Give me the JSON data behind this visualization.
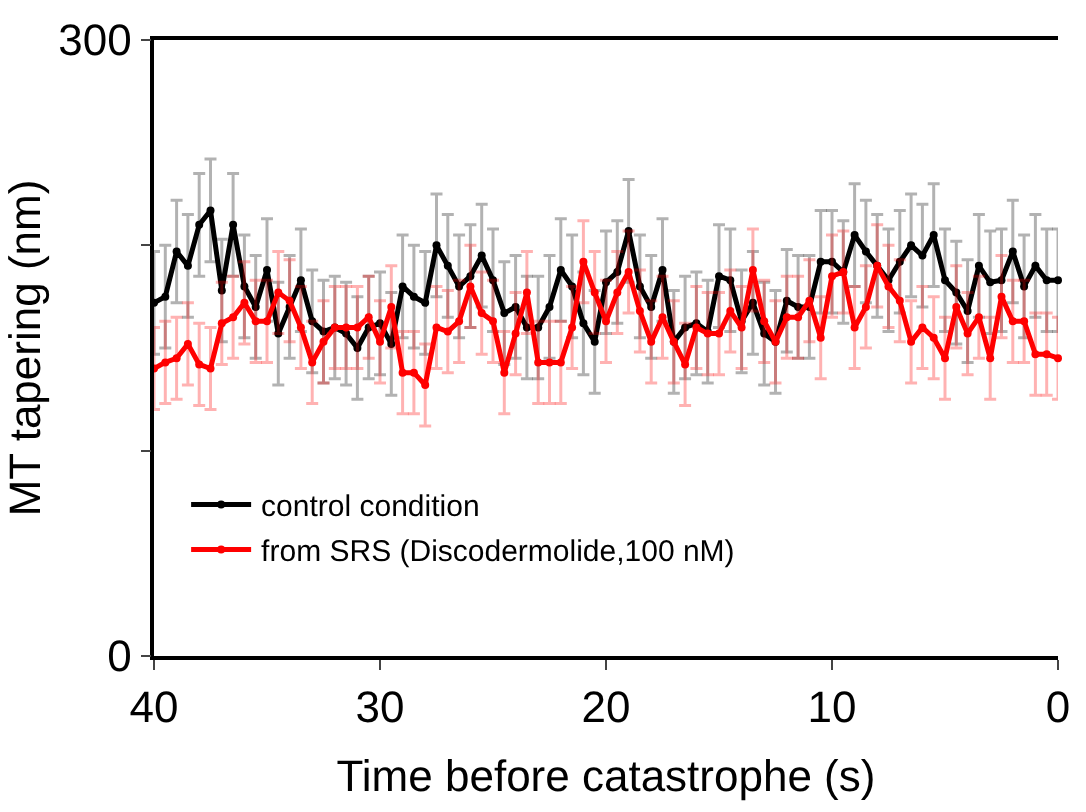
{
  "chart_data": {
    "type": "line",
    "xlabel": "Time before catastrophe (s)",
    "ylabel": "MT tapering (nm)",
    "x": [
      40,
      39.5,
      39,
      38.5,
      38,
      37.5,
      37,
      36.5,
      36,
      35.5,
      35,
      34.5,
      34,
      33.5,
      33,
      32.5,
      32,
      31.5,
      31,
      30.5,
      30,
      29.5,
      29,
      28.5,
      28,
      27.5,
      27,
      26.5,
      26,
      25.5,
      25,
      24.5,
      24,
      23.5,
      23,
      22.5,
      22,
      21.5,
      21,
      20.5,
      20,
      19.5,
      19,
      18.5,
      18,
      17.5,
      17,
      16.5,
      16,
      15.5,
      15,
      14.5,
      14,
      13.5,
      13,
      12.5,
      12,
      11.5,
      11,
      10.5,
      10,
      9.5,
      9,
      8.5,
      8,
      7.5,
      7,
      6.5,
      6,
      5.5,
      5,
      4.5,
      4,
      3.5,
      3,
      2.5,
      2,
      1.5,
      1,
      0.5,
      0
    ],
    "series": [
      {
        "name": "control condition",
        "color": "#000000",
        "values": [
          172,
          175,
          197,
          190,
          210,
          217,
          178,
          210,
          180,
          170,
          188,
          157,
          170,
          183,
          163,
          158,
          160,
          157,
          150,
          160,
          162,
          152,
          180,
          175,
          172,
          200,
          190,
          180,
          185,
          195,
          183,
          167,
          170,
          160,
          160,
          170,
          188,
          180,
          162,
          153,
          182,
          187,
          207,
          180,
          170,
          188,
          153,
          160,
          162,
          158,
          185,
          183,
          163,
          172,
          157,
          153,
          173,
          170,
          170,
          192,
          192,
          187,
          205,
          197,
          190,
          183,
          192,
          200,
          195,
          205,
          183,
          177,
          168,
          190,
          182,
          183,
          197,
          180,
          190,
          183,
          183
        ],
        "errors": [
          25,
          25,
          25,
          25,
          25,
          25,
          25,
          25,
          25,
          25,
          25,
          25,
          25,
          25,
          25,
          25,
          25,
          25,
          25,
          25,
          25,
          25,
          25,
          25,
          25,
          25,
          25,
          25,
          25,
          25,
          25,
          25,
          25,
          25,
          25,
          25,
          25,
          25,
          25,
          25,
          25,
          25,
          25,
          25,
          25,
          25,
          25,
          25,
          25,
          25,
          25,
          25,
          25,
          25,
          25,
          25,
          25,
          25,
          25,
          25,
          25,
          25,
          25,
          25,
          25,
          25,
          25,
          25,
          25,
          25,
          25,
          25,
          25,
          25,
          25,
          25,
          25,
          25,
          25,
          25,
          25
        ]
      },
      {
        "name": "from SRS (Discodermolide,100 nM)",
        "color": "#ff0000",
        "values": [
          140,
          143,
          145,
          152,
          142,
          140,
          162,
          165,
          172,
          163,
          163,
          177,
          173,
          160,
          143,
          153,
          160,
          160,
          160,
          165,
          153,
          170,
          138,
          138,
          132,
          160,
          158,
          163,
          180,
          167,
          163,
          138,
          157,
          177,
          143,
          143,
          143,
          160,
          192,
          177,
          163,
          177,
          187,
          168,
          153,
          165,
          153,
          142,
          160,
          157,
          157,
          168,
          160,
          188,
          163,
          153,
          165,
          165,
          173,
          155,
          185,
          187,
          160,
          170,
          190,
          180,
          173,
          153,
          160,
          155,
          145,
          170,
          157,
          165,
          145,
          175,
          163,
          163,
          147,
          147,
          145
        ],
        "errors": [
          20,
          20,
          20,
          20,
          20,
          20,
          20,
          20,
          20,
          20,
          20,
          20,
          20,
          20,
          20,
          20,
          20,
          20,
          20,
          20,
          20,
          20,
          20,
          20,
          20,
          20,
          20,
          20,
          20,
          20,
          20,
          20,
          20,
          20,
          20,
          20,
          20,
          20,
          20,
          20,
          20,
          20,
          20,
          20,
          20,
          20,
          20,
          20,
          20,
          20,
          20,
          20,
          20,
          20,
          20,
          20,
          20,
          20,
          20,
          20,
          20,
          20,
          20,
          20,
          20,
          20,
          20,
          20,
          20,
          20,
          20,
          20,
          20,
          20,
          20,
          20,
          20,
          20,
          20,
          20,
          20
        ]
      }
    ],
    "xlim": [
      40,
      0
    ],
    "xticks": [
      40,
      30,
      20,
      10,
      0
    ],
    "ylim": [
      0,
      300
    ],
    "yticks": [
      0,
      {
        "value": 100,
        "label": null
      },
      {
        "value": 200,
        "label": null
      },
      300
    ],
    "legend": "bottom left",
    "marker": "circle",
    "line_style": "solid"
  }
}
